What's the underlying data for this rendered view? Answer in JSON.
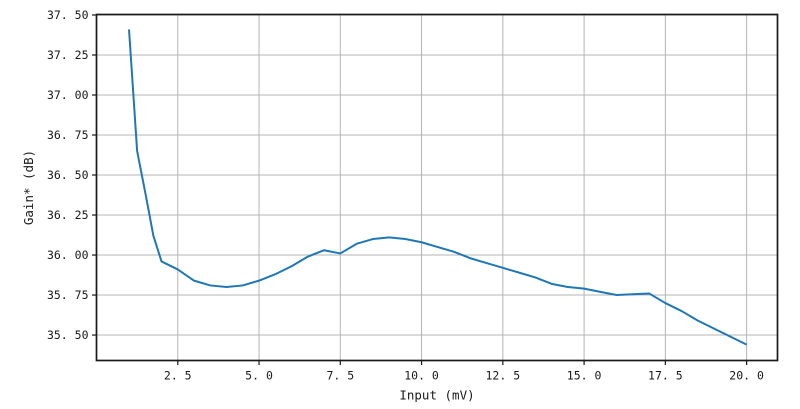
{
  "chart_data": {
    "type": "line",
    "title": "",
    "xlabel": "Input (mV)",
    "ylabel": "Gain* (dB)",
    "xlim": [
      0.0,
      20.95
    ],
    "ylim": [
      35.341,
      37.503
    ],
    "grid": true,
    "legend": "none",
    "colors": {
      "line": "#1f77b4",
      "grid": "#b4b4b4",
      "axis": "#1a1a1a",
      "background": "#ffffff"
    },
    "xticks": [
      {
        "v": 2.5,
        "label": "2. 5"
      },
      {
        "v": 5.0,
        "label": "5. 0"
      },
      {
        "v": 7.5,
        "label": "7. 5"
      },
      {
        "v": 10.0,
        "label": "10. 0"
      },
      {
        "v": 12.5,
        "label": "12. 5"
      },
      {
        "v": 15.0,
        "label": "15. 0"
      },
      {
        "v": 17.5,
        "label": "17. 5"
      },
      {
        "v": 20.0,
        "label": "20. 0"
      }
    ],
    "yticks": [
      {
        "v": 35.5,
        "label": "35. 50"
      },
      {
        "v": 35.75,
        "label": "35. 75"
      },
      {
        "v": 36.0,
        "label": "36. 00"
      },
      {
        "v": 36.25,
        "label": "36. 25"
      },
      {
        "v": 36.5,
        "label": "36. 50"
      },
      {
        "v": 36.75,
        "label": "36. 75"
      },
      {
        "v": 37.0,
        "label": "37. 00"
      },
      {
        "v": 37.25,
        "label": "37. 25"
      },
      {
        "v": 37.5,
        "label": "37. 50"
      }
    ],
    "series": [
      {
        "x": [
          1.0,
          1.25,
          1.5,
          1.75,
          2.0,
          2.5,
          3.0,
          3.5,
          4.0,
          4.5,
          5.0,
          5.5,
          6.0,
          6.5,
          7.0,
          7.5,
          8.0,
          8.5,
          9.0,
          9.5,
          10.0,
          10.5,
          11.0,
          11.5,
          12.0,
          12.5,
          13.0,
          13.5,
          14.0,
          14.5,
          15.0,
          15.5,
          16.0,
          16.5,
          17.0,
          17.5,
          18.0,
          18.5,
          19.0,
          19.5,
          20.0
        ],
        "y": [
          37.41,
          36.65,
          36.39,
          36.12,
          35.96,
          35.91,
          35.84,
          35.81,
          35.8,
          35.81,
          35.84,
          35.88,
          35.93,
          35.99,
          36.03,
          36.01,
          36.07,
          36.1,
          36.11,
          36.1,
          36.08,
          36.05,
          36.02,
          35.98,
          35.95,
          35.92,
          35.89,
          35.86,
          35.82,
          35.8,
          35.79,
          35.77,
          35.75,
          35.755,
          35.76,
          35.7,
          35.65,
          35.59,
          35.54,
          35.49,
          35.44
        ]
      }
    ]
  }
}
